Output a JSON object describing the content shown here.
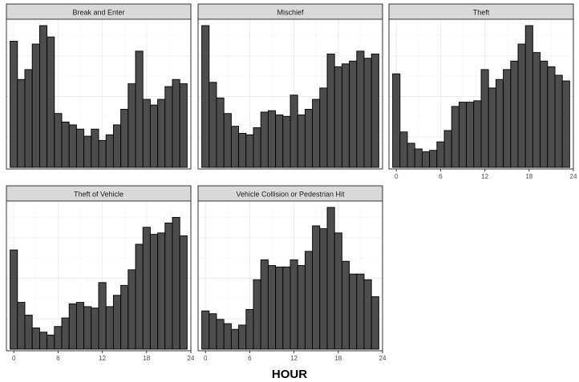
{
  "chart_data": {
    "type": "bar",
    "xlabel": "HOUR",
    "ylabel": "",
    "x_ticks": [
      "0",
      "6",
      "12",
      "18",
      "24"
    ],
    "xlim": [
      -1,
      24
    ],
    "hours": [
      0,
      1,
      2,
      3,
      4,
      5,
      6,
      7,
      8,
      9,
      10,
      11,
      12,
      13,
      14,
      15,
      16,
      17,
      18,
      19,
      20,
      21,
      22,
      23
    ],
    "y_axis_labels_shown": false,
    "grid": true,
    "facets": [
      {
        "name": "Break and Enter",
        "ymax": 1.0,
        "values": [
          0.89,
          0.62,
          0.69,
          0.87,
          1.0,
          0.92,
          0.38,
          0.32,
          0.3,
          0.27,
          0.22,
          0.27,
          0.19,
          0.23,
          0.3,
          0.41,
          0.59,
          0.82,
          0.48,
          0.44,
          0.48,
          0.57,
          0.62,
          0.59
        ]
      },
      {
        "name": "Mischief",
        "ymax": 1.0,
        "values": [
          1.0,
          0.6,
          0.49,
          0.38,
          0.29,
          0.24,
          0.23,
          0.28,
          0.39,
          0.4,
          0.37,
          0.36,
          0.51,
          0.37,
          0.41,
          0.48,
          0.56,
          0.8,
          0.71,
          0.73,
          0.75,
          0.82,
          0.77,
          0.8
        ]
      },
      {
        "name": "Theft",
        "ymax": 1.0,
        "values": [
          0.66,
          0.25,
          0.17,
          0.13,
          0.11,
          0.12,
          0.18,
          0.26,
          0.43,
          0.46,
          0.46,
          0.47,
          0.69,
          0.56,
          0.62,
          0.69,
          0.75,
          0.87,
          1.0,
          0.81,
          0.75,
          0.71,
          0.65,
          0.61
        ]
      },
      {
        "name": "Theft of Vehicle",
        "ymax": 1.0,
        "values": [
          0.7,
          0.33,
          0.24,
          0.15,
          0.12,
          0.1,
          0.16,
          0.22,
          0.32,
          0.33,
          0.3,
          0.29,
          0.47,
          0.3,
          0.38,
          0.45,
          0.56,
          0.74,
          0.86,
          0.81,
          0.82,
          0.89,
          0.93,
          0.8
        ]
      },
      {
        "name": "Vehicle Collision or Pedestrian Hit",
        "ymax": 1.0,
        "values": [
          0.27,
          0.25,
          0.21,
          0.18,
          0.14,
          0.17,
          0.28,
          0.49,
          0.63,
          0.59,
          0.58,
          0.58,
          0.63,
          0.59,
          0.69,
          0.87,
          0.85,
          1.0,
          0.82,
          0.62,
          0.53,
          0.53,
          0.49,
          0.37
        ]
      }
    ]
  }
}
